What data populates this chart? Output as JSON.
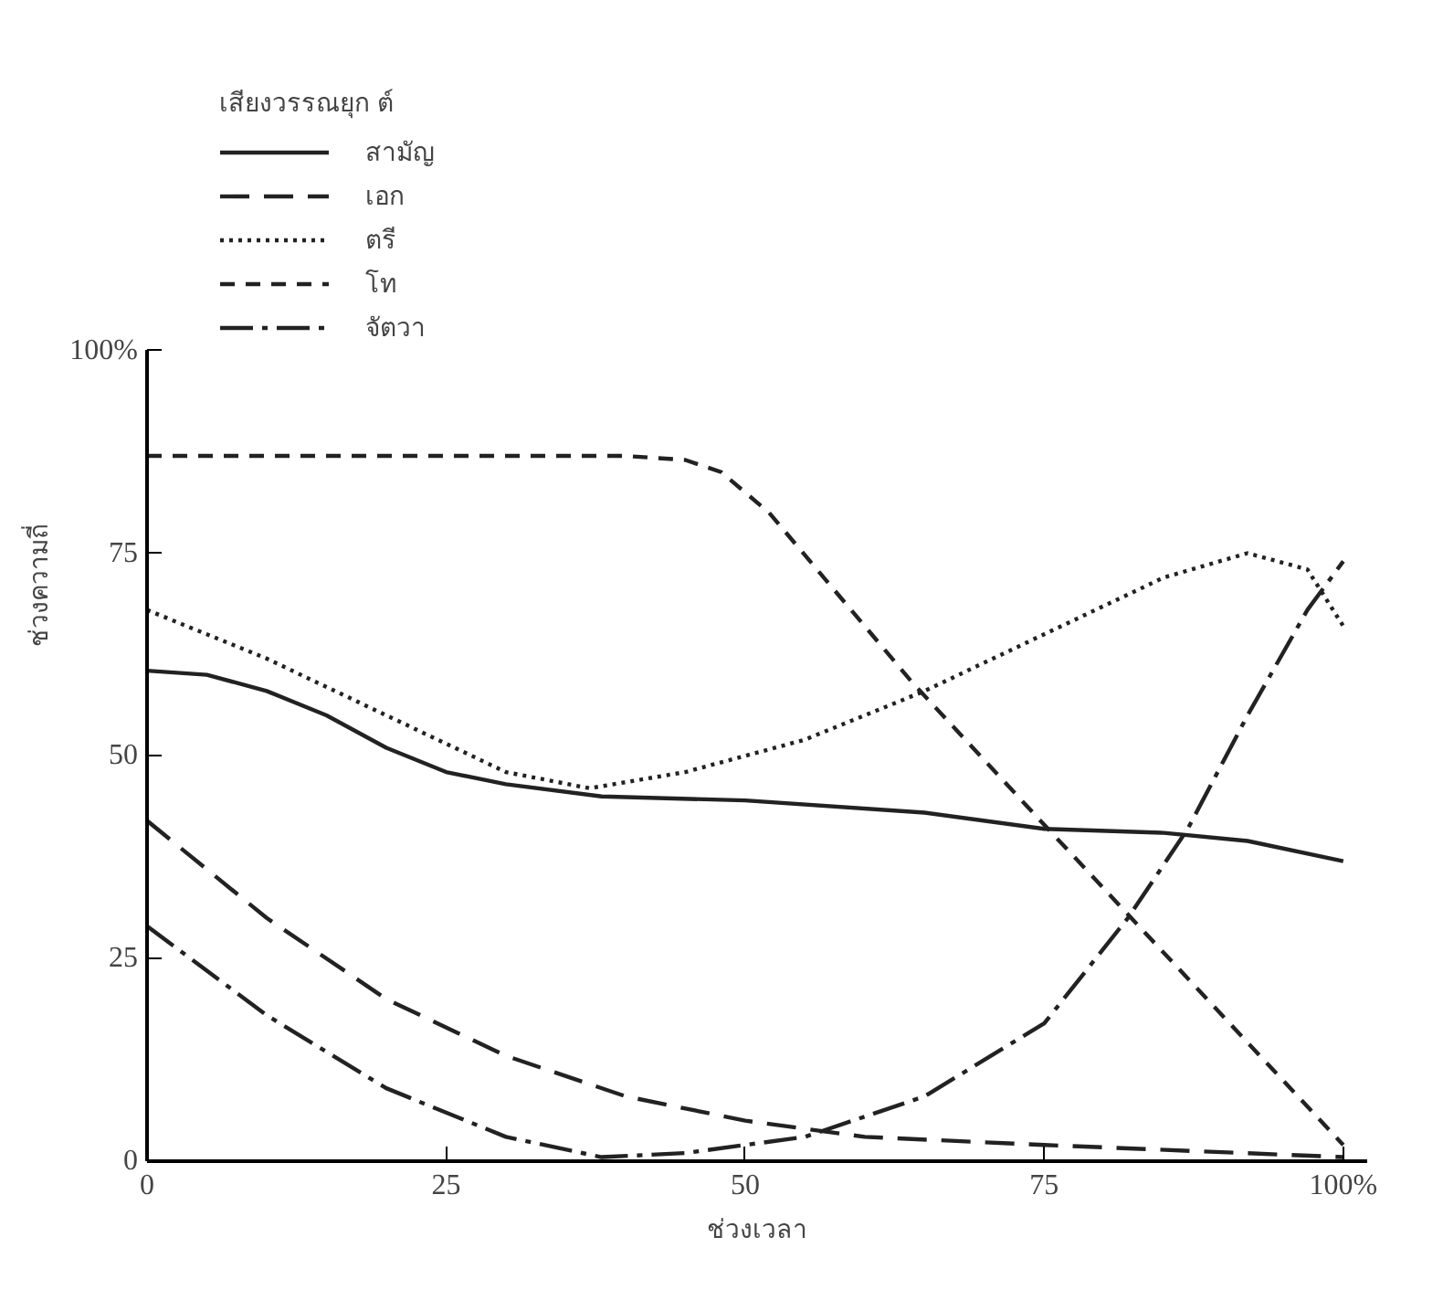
{
  "chart_data": {
    "type": "line",
    "xlabel": "ช่วงเวลา",
    "ylabel": "ช่วงความถี่",
    "legend_title": "เสียงวรรณยุก ต์",
    "legend": "top left",
    "grid": false,
    "xlim": [
      0,
      102
    ],
    "ylim": [
      0,
      100
    ],
    "xticks": [
      0,
      25,
      50,
      75,
      {
        "value": 100,
        "label": "100%"
      }
    ],
    "yticks": [
      0,
      25,
      50,
      75,
      {
        "value": 100,
        "label": "100%"
      }
    ],
    "series": [
      {
        "name": "สามัญ",
        "color": "#222222",
        "line_style": "solid",
        "x": [
          0,
          5,
          10,
          15,
          20,
          25,
          30,
          38,
          50,
          65,
          75,
          85,
          92,
          100
        ],
        "values": [
          60.5,
          60,
          58,
          55,
          51,
          48,
          46.5,
          45,
          44.5,
          43,
          41,
          40.5,
          39.5,
          37
        ]
      },
      {
        "name": "เอก",
        "color": "#222222",
        "line_style": "dashed",
        "x": [
          0,
          10,
          20,
          30,
          40,
          50,
          60,
          75,
          100
        ],
        "values": [
          42,
          30,
          20,
          13,
          8,
          5,
          3,
          2,
          0.5
        ]
      },
      {
        "name": "ตรี",
        "color": "#222222",
        "line_style": "dotted",
        "x": [
          0,
          10,
          20,
          30,
          37,
          45,
          55,
          65,
          75,
          85,
          92,
          97,
          100
        ],
        "values": [
          68,
          62,
          55,
          48,
          46,
          48,
          52,
          58,
          65,
          72,
          75,
          73,
          66
        ]
      },
      {
        "name": "โท",
        "color": "#222222",
        "line_style": "shortdashed",
        "x": [
          0,
          20,
          40,
          45,
          48,
          52,
          64,
          75,
          100
        ],
        "values": [
          87,
          87,
          87,
          86.5,
          85,
          80,
          59,
          41.5,
          2
        ]
      },
      {
        "name": "จัตวา",
        "color": "#222222",
        "line_style": "dashdot",
        "x": [
          0,
          10,
          20,
          30,
          38,
          45,
          55,
          65,
          75,
          82,
          87,
          92,
          97,
          100
        ],
        "values": [
          29,
          18,
          9,
          3,
          0.5,
          1,
          3,
          8,
          17,
          30,
          41,
          55,
          68,
          74
        ]
      }
    ]
  }
}
